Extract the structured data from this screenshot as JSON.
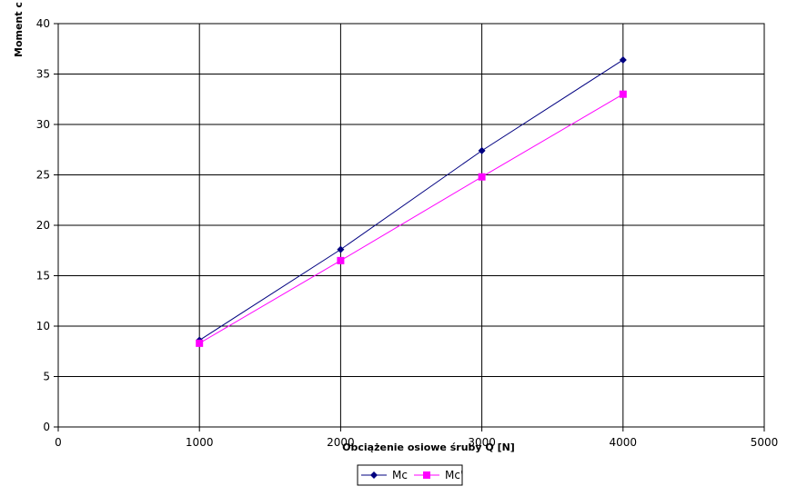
{
  "chart_data": {
    "type": "line",
    "x_label": "Obciążenie osiowe śruby Q [N]",
    "y_label": "Moment c",
    "x": [
      1000,
      2000,
      3000,
      4000
    ],
    "series": [
      {
        "name": "Mc",
        "color": "#000080",
        "marker": "diamond",
        "values": [
          8.6,
          17.6,
          27.4,
          36.4
        ]
      },
      {
        "name": "Mc'",
        "color": "#ff00ff",
        "marker": "square",
        "values": [
          8.3,
          16.5,
          24.8,
          33.0
        ]
      }
    ],
    "xlim": [
      0,
      5000
    ],
    "xticks": [
      0,
      1000,
      2000,
      3000,
      4000,
      5000
    ],
    "ylim": [
      0,
      40
    ],
    "yticks": [
      0,
      5,
      10,
      15,
      20,
      25,
      30,
      35,
      40
    ],
    "grid": true,
    "legend": "bottom"
  }
}
